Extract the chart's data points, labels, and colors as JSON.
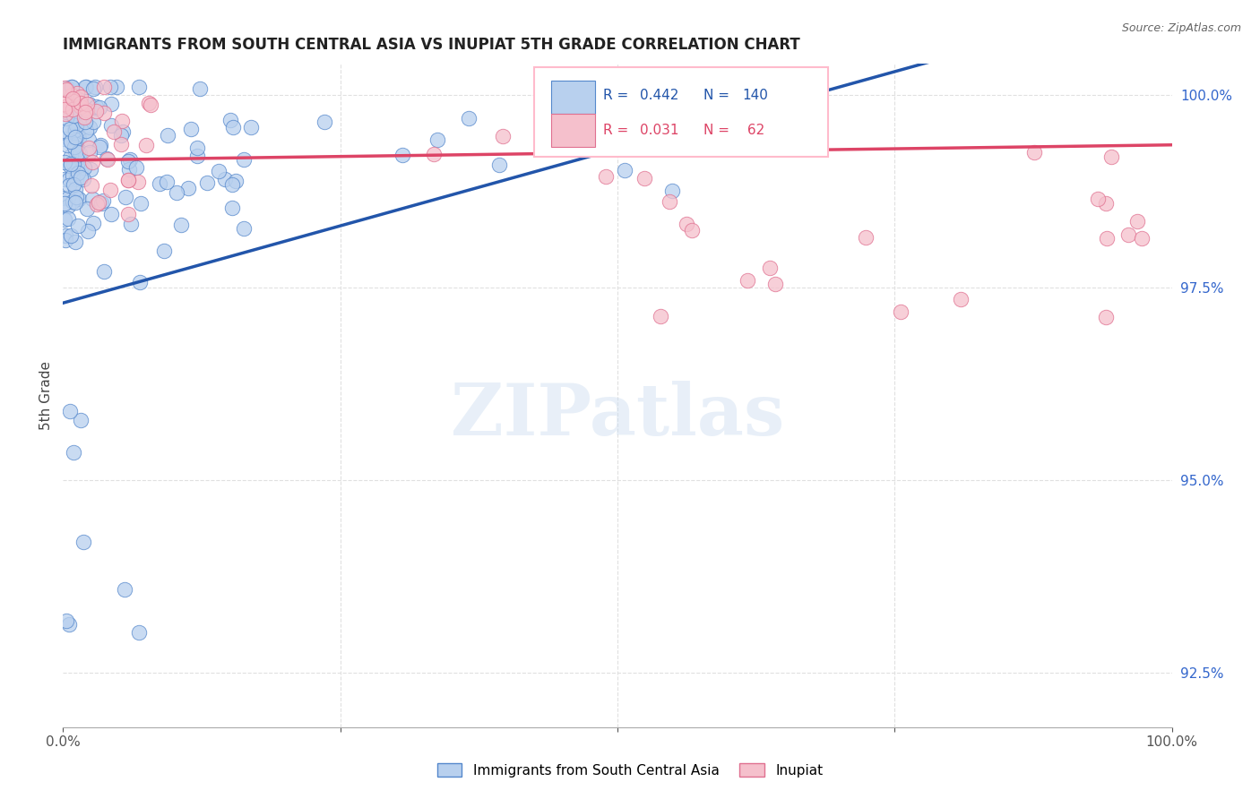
{
  "title": "IMMIGRANTS FROM SOUTH CENTRAL ASIA VS INUPIAT 5TH GRADE CORRELATION CHART",
  "source": "Source: ZipAtlas.com",
  "ylabel": "5th Grade",
  "xlim": [
    0,
    1.0
  ],
  "ylim": [
    0.918,
    1.004
  ],
  "yticks": [
    0.925,
    0.95,
    0.975,
    1.0
  ],
  "ytick_labels": [
    "92.5%",
    "95.0%",
    "97.5%",
    "100.0%"
  ],
  "xtick_labels": [
    "0.0%",
    "",
    "",
    "",
    "100.0%"
  ],
  "blue_R": "0.442",
  "blue_N": "140",
  "pink_R": "0.031",
  "pink_N": " 62",
  "blue_fill": "#b8d0ee",
  "blue_edge": "#5588cc",
  "pink_fill": "#f5c0cc",
  "pink_edge": "#e07090",
  "blue_line": "#2255aa",
  "pink_line": "#dd4466",
  "legend_blue": "Immigrants from South Central Asia",
  "legend_pink": "Inupiat",
  "watermark": "ZIPatlas",
  "right_tick_color": "#3366cc",
  "grid_color": "#e0e0e0",
  "title_color": "#222222",
  "source_color": "#666666"
}
